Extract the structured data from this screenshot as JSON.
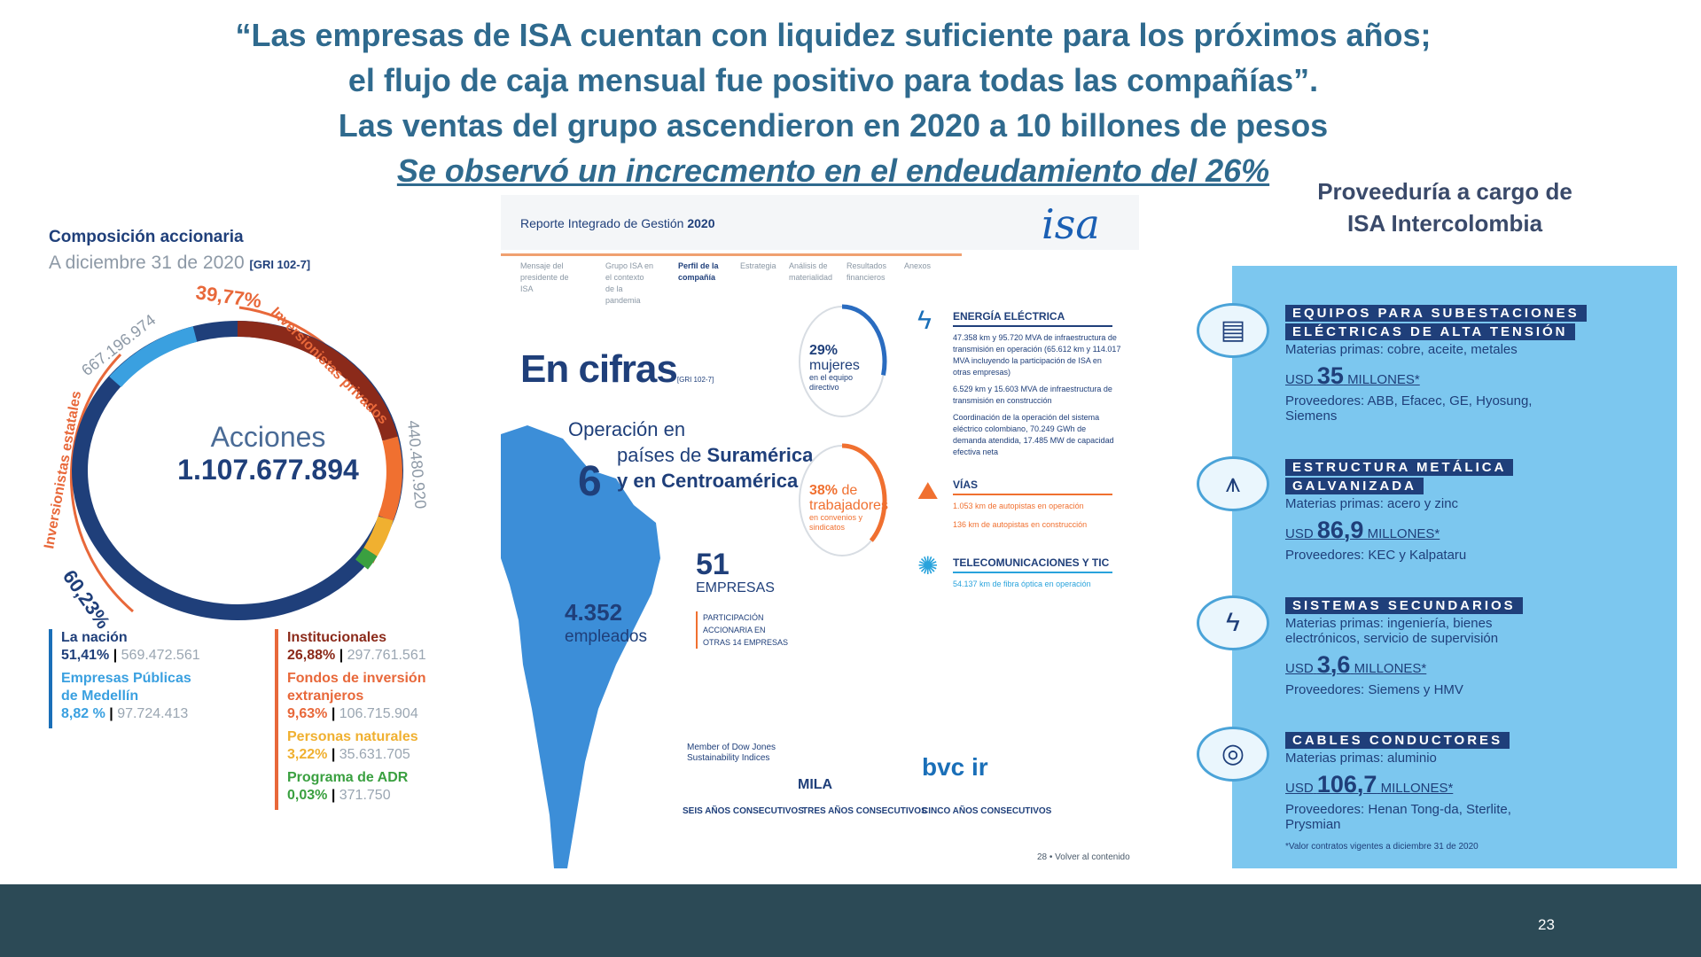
{
  "headline": {
    "line1": "“Las empresas de ISA cuentan con liquidez suficiente para los próximos años;",
    "line2": "el flujo de caja mensual fue positivo para todas las compañías”.",
    "line3": "Las ventas del grupo ascendieron en 2020 a 10 billones de pesos",
    "line4": "Se observó un increcmento en el endeudamiento del 26%"
  },
  "composicion": {
    "title": "Composición accionaria",
    "subtitle": "A diciembre 31 de 2020",
    "gri": "[GRI 102-7]",
    "acciones_label": "Acciones",
    "acciones_total": "1.107.677.894",
    "estatales_pct": "60,23%",
    "estatales_label": "Inversionistas estatales",
    "estatales_num": "667.196.974",
    "privados_pct": "39,77%",
    "privados_label": "Inversionistas privados",
    "privados_num": "440.480.920",
    "colors": {
      "estatales": "#1f3f7a",
      "epm": "#3aa0e0",
      "privados": "#f07030",
      "institucionales": "#8b2a1a",
      "adr": "#3aa040",
      "naturales": "#f0b030"
    },
    "left_list": [
      {
        "name": "La nación",
        "pct": "51,41%",
        "num": "569.472.561",
        "color": "#1f3f7a"
      },
      {
        "name": "Empresas Públicas de Medellín",
        "pct": "8,82 %",
        "num": "97.724.413",
        "color": "#3aa0e0"
      }
    ],
    "right_list": [
      {
        "name": "Institucionales",
        "pct": "26,88%",
        "num": "297.761.561",
        "color": "#8b2a1a"
      },
      {
        "name": "Fondos de inversión extranjeros",
        "pct": "9,63%",
        "num": "106.715.904",
        "color": "#e8683a"
      },
      {
        "name": "Personas naturales",
        "pct": "3,22%",
        "num": "35.631.705",
        "color": "#f0b030"
      },
      {
        "name": "Programa de ADR",
        "pct": "0,03%",
        "num": "371.750",
        "color": "#3aa040"
      }
    ]
  },
  "reporte": {
    "title_prefix": "Reporte Integrado de Gestión",
    "year": "2020",
    "logo": "isa",
    "nav": [
      "Mensaje del presidente de ISA",
      "Grupo ISA en el contexto de la pandemia",
      "Perfil de la compañía",
      "Estrategia",
      "Análisis de materialidad",
      "Resultados financieros",
      "Anexos"
    ],
    "cifras_title": "En cifras",
    "cifras_gri": "[GRI 102-7]",
    "operacion_pre": "Operación en",
    "paises_num": "6",
    "paises_line1_a": "países de ",
    "paises_line1_b": "Suramérica",
    "paises_line2": "y en Centroamérica",
    "empleados_num": "4.352",
    "empleados_label": "empleados",
    "empresas_num": "51",
    "empresas_label": "EMPRESAS",
    "empresas_sub": "PARTICIPACIÓN ACCIONARIA EN OTRAS 14 EMPRESAS",
    "mujeres_pct": "29%",
    "mujeres_label": "mujeres",
    "mujeres_sub": "en el equipo directivo",
    "mujeres_fill": 0.29,
    "trab_pct": "38%",
    "trab_label": "de trabajadores",
    "trab_sub": "en convenios y sindicatos",
    "trab_fill": 0.38,
    "energia_title": "ENERGÍA ELÉCTRICA",
    "energia_p1": "47.358 km y 95.720 MVA de infraestructura de transmisión en operación (65.612 km y 114.017 MVA incluyendo la participación de ISA en otras empresas)",
    "energia_p2": "6.529 km y 15.603 MVA de infraestructura de transmisión en construcción",
    "energia_p3": "Coordinación de la operación del sistema eléctrico colombiano, 70.249 GWh de demanda atendida, 17.485 MW de capacidad efectiva neta",
    "vias_title": "VÍAS",
    "vias_p1": "1.053 km de autopistas en operación",
    "vias_p2": "136 km de autopistas en construcción",
    "telecom_title": "TELECOMUNICACIONES Y TIC",
    "telecom_p1": "54.137 km de fibra óptica en operación",
    "badge1_logo": "Member of Dow Jones Sustainability Indices",
    "badge1": "SEIS AÑOS CONSECUTIVOS",
    "badge2_logo": "MILA",
    "badge2": "TRES AÑOS CONSECUTIVOS",
    "badge3_logo": "bvc ir",
    "badge3": "CINCO AÑOS CONSECUTIVOS",
    "page": "28 • Volver al contenido"
  },
  "proveeduria": {
    "title_line1": "Proveeduría a cargo de",
    "title_line2": "ISA Intercolombia",
    "items": [
      {
        "head1": "EQUIPOS PARA SUBESTACIONES",
        "head2": "ELÉCTRICAS DE ALTA TENSIÓN",
        "materias": "Materias primas: cobre, aceite, metales",
        "usd_pre": "USD",
        "amount": "35",
        "usd_post": "MILLONES*",
        "prov": "Proveedores: ABB, Efacec, GE, Hyosung, Siemens",
        "icon": "clipboard-icon"
      },
      {
        "head1": "ESTRUCTURA METÁLICA",
        "head2": "GALVANIZADA",
        "materias": "Materias primas: acero y zinc",
        "usd_pre": "USD",
        "amount": "86,9",
        "usd_post": "MILLONES*",
        "prov": "Proveedores: KEC y Kalpataru",
        "icon": "tower-icon"
      },
      {
        "head1": "SISTEMAS SECUNDARIOS",
        "head2": "",
        "materias": "Materias primas: ingeniería, bienes electrónicos, servicio de supervisión",
        "usd_pre": "USD",
        "amount": "3,6",
        "usd_post": "MILLONES*",
        "prov": "Proveedores: Siemens y HMV",
        "icon": "lightning-icon"
      },
      {
        "head1": "CABLES CONDUCTORES",
        "head2": "",
        "materias": "Materias primas: aluminio",
        "usd_pre": "USD",
        "amount": "106,7",
        "usd_post": "MILLONES*",
        "prov": "Proveedores: Henan Tong-da, Sterlite, Prysmian",
        "icon": "cable-icon"
      }
    ],
    "note": "*Valor contratos vigentes a diciembre 31 de 2020"
  },
  "footer": {
    "page_number": "23"
  }
}
